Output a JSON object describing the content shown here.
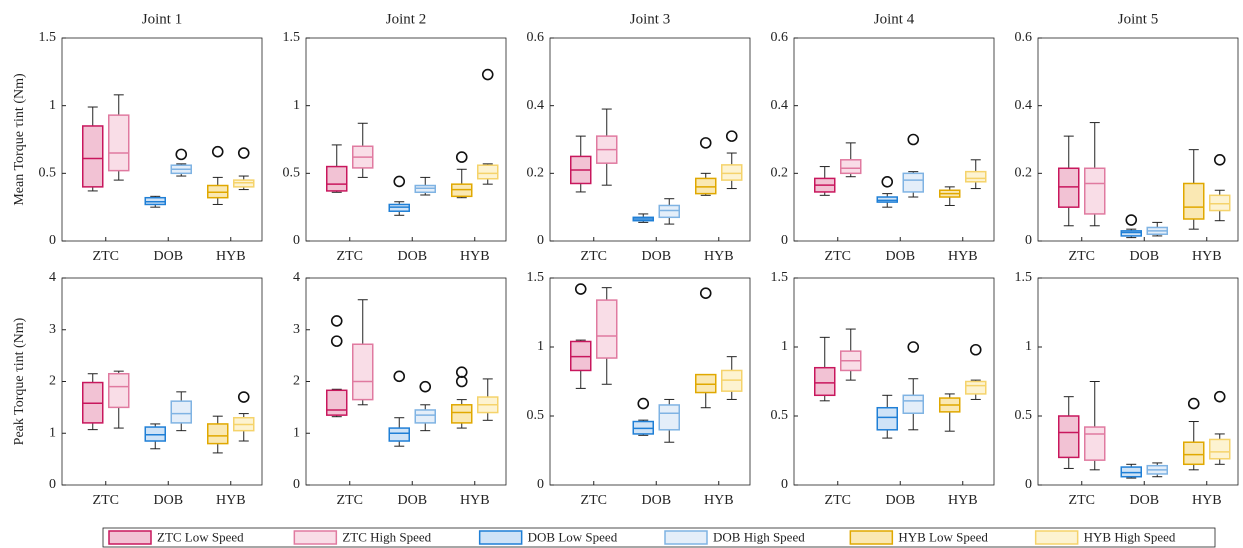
{
  "chart_data": {
    "type": "box",
    "categories": [
      "ZTC",
      "DOB",
      "HYB"
    ],
    "series": [
      {
        "name": "ZTC Low Speed",
        "color": "#c8175d",
        "fill": "#f2c2d4"
      },
      {
        "name": "ZTC High Speed",
        "color": "#e07aa0",
        "fill": "#f9dde7"
      },
      {
        "name": "DOB Low Speed",
        "color": "#1f7fd6",
        "fill": "#cfe3f7"
      },
      {
        "name": "DOB High Speed",
        "color": "#7fb3e3",
        "fill": "#e4eef9"
      },
      {
        "name": "HYB Low Speed",
        "color": "#e0a800",
        "fill": "#fae8b3"
      },
      {
        "name": "HYB High Speed",
        "color": "#f5d36b",
        "fill": "#fdf3d1"
      }
    ],
    "panels": [
      {
        "title": "Joint 1",
        "ylabel": "Mean Torque τint (Nm)",
        "ylim": [
          0,
          1.5
        ],
        "yticks": [
          0,
          0.5,
          1,
          1.5
        ],
        "groups": [
          [
            {
              "low": 0.37,
              "q1": 0.4,
              "median": 0.61,
              "q3": 0.85,
              "high": 0.99
            },
            {
              "low": 0.45,
              "q1": 0.52,
              "median": 0.65,
              "q3": 0.93,
              "high": 1.08
            }
          ],
          [
            {
              "low": 0.25,
              "q1": 0.27,
              "median": 0.29,
              "q3": 0.32,
              "high": 0.33
            },
            {
              "low": 0.48,
              "q1": 0.5,
              "median": 0.53,
              "q3": 0.56,
              "high": 0.57,
              "outliers": [
                0.64
              ]
            }
          ],
          [
            {
              "low": 0.27,
              "q1": 0.32,
              "median": 0.36,
              "q3": 0.41,
              "high": 0.47,
              "outliers": [
                0.66
              ]
            },
            {
              "low": 0.38,
              "q1": 0.4,
              "median": 0.43,
              "q3": 0.45,
              "high": 0.48,
              "outliers": [
                0.65
              ]
            }
          ]
        ]
      },
      {
        "title": "Joint 2",
        "ylim": [
          0,
          1.5
        ],
        "yticks": [
          0,
          0.5,
          1,
          1.5
        ],
        "groups": [
          [
            {
              "low": 0.36,
              "q1": 0.37,
              "median": 0.42,
              "q3": 0.55,
              "high": 0.71
            },
            {
              "low": 0.47,
              "q1": 0.54,
              "median": 0.62,
              "q3": 0.7,
              "high": 0.87
            }
          ],
          [
            {
              "low": 0.19,
              "q1": 0.22,
              "median": 0.25,
              "q3": 0.27,
              "high": 0.29,
              "outliers": [
                0.44
              ]
            },
            {
              "low": 0.34,
              "q1": 0.36,
              "median": 0.39,
              "q3": 0.41,
              "high": 0.47
            }
          ],
          [
            {
              "low": 0.32,
              "q1": 0.33,
              "median": 0.38,
              "q3": 0.42,
              "high": 0.53,
              "outliers": [
                0.62
              ]
            },
            {
              "low": 0.42,
              "q1": 0.46,
              "median": 0.5,
              "q3": 0.56,
              "high": 0.57,
              "outliers": [
                1.23
              ]
            }
          ]
        ]
      },
      {
        "title": "Joint 3",
        "ylim": [
          0,
          0.6
        ],
        "yticks": [
          0,
          0.2,
          0.4,
          0.6
        ],
        "groups": [
          [
            {
              "low": 0.145,
              "q1": 0.17,
              "median": 0.21,
              "q3": 0.25,
              "high": 0.31
            },
            {
              "low": 0.165,
              "q1": 0.23,
              "median": 0.27,
              "q3": 0.31,
              "high": 0.39
            }
          ],
          [
            {
              "low": 0.055,
              "q1": 0.06,
              "median": 0.065,
              "q3": 0.07,
              "high": 0.08
            },
            {
              "low": 0.05,
              "q1": 0.07,
              "median": 0.09,
              "q3": 0.105,
              "high": 0.125
            }
          ],
          [
            {
              "low": 0.135,
              "q1": 0.14,
              "median": 0.16,
              "q3": 0.185,
              "high": 0.2,
              "outliers": [
                0.29
              ]
            },
            {
              "low": 0.155,
              "q1": 0.18,
              "median": 0.2,
              "q3": 0.225,
              "high": 0.26,
              "outliers": [
                0.31
              ]
            }
          ]
        ]
      },
      {
        "title": "Joint 4",
        "ylim": [
          0,
          0.6
        ],
        "yticks": [
          0,
          0.2,
          0.4,
          0.6
        ],
        "groups": [
          [
            {
              "low": 0.135,
              "q1": 0.145,
              "median": 0.165,
              "q3": 0.185,
              "high": 0.22
            },
            {
              "low": 0.19,
              "q1": 0.2,
              "median": 0.215,
              "q3": 0.24,
              "high": 0.29
            }
          ],
          [
            {
              "low": 0.1,
              "q1": 0.115,
              "median": 0.12,
              "q3": 0.13,
              "high": 0.14,
              "outliers": [
                0.175
              ]
            },
            {
              "low": 0.13,
              "q1": 0.145,
              "median": 0.18,
              "q3": 0.2,
              "high": 0.205,
              "outliers": [
                0.3
              ]
            }
          ],
          [
            {
              "low": 0.105,
              "q1": 0.13,
              "median": 0.14,
              "q3": 0.15,
              "high": 0.16
            },
            {
              "low": 0.155,
              "q1": 0.175,
              "median": 0.185,
              "q3": 0.205,
              "high": 0.24
            }
          ]
        ]
      },
      {
        "title": "Joint 5",
        "ylim": [
          0,
          0.6
        ],
        "yticks": [
          0,
          0.2,
          0.4,
          0.6
        ],
        "groups": [
          [
            {
              "low": 0.045,
              "q1": 0.1,
              "median": 0.16,
              "q3": 0.215,
              "high": 0.31
            },
            {
              "low": 0.045,
              "q1": 0.08,
              "median": 0.17,
              "q3": 0.215,
              "high": 0.35
            }
          ],
          [
            {
              "low": 0.01,
              "q1": 0.015,
              "median": 0.025,
              "q3": 0.03,
              "high": 0.035,
              "outliers": [
                0.062
              ]
            },
            {
              "low": 0.015,
              "q1": 0.02,
              "median": 0.03,
              "q3": 0.04,
              "high": 0.055
            }
          ],
          [
            {
              "low": 0.035,
              "q1": 0.065,
              "median": 0.1,
              "q3": 0.17,
              "high": 0.27
            },
            {
              "low": 0.06,
              "q1": 0.09,
              "median": 0.11,
              "q3": 0.135,
              "high": 0.15,
              "outliers": [
                0.24
              ]
            }
          ]
        ]
      },
      {
        "ylabel": "Peak Torque τint (Nm)",
        "ylim": [
          0,
          4
        ],
        "yticks": [
          0,
          1,
          2,
          3,
          4
        ],
        "groups": [
          [
            {
              "low": 1.07,
              "q1": 1.2,
              "median": 1.58,
              "q3": 1.98,
              "high": 2.15
            },
            {
              "low": 1.1,
              "q1": 1.5,
              "median": 1.9,
              "q3": 2.15,
              "high": 2.2
            }
          ],
          [
            {
              "low": 0.7,
              "q1": 0.85,
              "median": 0.97,
              "q3": 1.12,
              "high": 1.18
            },
            {
              "low": 1.05,
              "q1": 1.2,
              "median": 1.38,
              "q3": 1.62,
              "high": 1.8
            }
          ],
          [
            {
              "low": 0.62,
              "q1": 0.8,
              "median": 0.95,
              "q3": 1.18,
              "high": 1.33
            },
            {
              "low": 0.85,
              "q1": 1.05,
              "median": 1.17,
              "q3": 1.3,
              "high": 1.38,
              "outliers": [
                1.7
              ]
            }
          ]
        ]
      },
      {
        "ylim": [
          0,
          4
        ],
        "yticks": [
          0,
          1,
          2,
          3,
          4
        ],
        "groups": [
          [
            {
              "low": 1.32,
              "q1": 1.35,
              "median": 1.45,
              "q3": 1.83,
              "high": 1.85,
              "outliers": [
                2.78,
                3.17
              ]
            },
            {
              "low": 1.55,
              "q1": 1.65,
              "median": 2.0,
              "q3": 2.72,
              "high": 3.58
            }
          ],
          [
            {
              "low": 0.75,
              "q1": 0.85,
              "median": 1.0,
              "q3": 1.1,
              "high": 1.3,
              "outliers": [
                2.1
              ]
            },
            {
              "low": 1.05,
              "q1": 1.2,
              "median": 1.35,
              "q3": 1.45,
              "high": 1.55,
              "outliers": [
                1.9
              ]
            }
          ],
          [
            {
              "low": 1.1,
              "q1": 1.2,
              "median": 1.4,
              "q3": 1.55,
              "high": 1.65,
              "outliers": [
                2.0,
                2.18
              ]
            },
            {
              "low": 1.25,
              "q1": 1.4,
              "median": 1.55,
              "q3": 1.7,
              "high": 2.05
            }
          ]
        ]
      },
      {
        "ylim": [
          0,
          1.5
        ],
        "yticks": [
          0,
          0.5,
          1,
          1.5
        ],
        "groups": [
          [
            {
              "low": 0.7,
              "q1": 0.83,
              "median": 0.93,
              "q3": 1.04,
              "high": 1.05,
              "outliers": [
                1.42
              ]
            },
            {
              "low": 0.73,
              "q1": 0.92,
              "median": 1.08,
              "q3": 1.34,
              "high": 1.43
            }
          ],
          [
            {
              "low": 0.36,
              "q1": 0.37,
              "median": 0.41,
              "q3": 0.46,
              "high": 0.47,
              "outliers": [
                0.59
              ]
            },
            {
              "low": 0.31,
              "q1": 0.4,
              "median": 0.52,
              "q3": 0.58,
              "high": 0.62
            }
          ],
          [
            {
              "low": 0.56,
              "q1": 0.67,
              "median": 0.73,
              "q3": 0.8,
              "high": 0.8,
              "outliers": [
                1.39
              ]
            },
            {
              "low": 0.62,
              "q1": 0.68,
              "median": 0.76,
              "q3": 0.83,
              "high": 0.93
            }
          ]
        ]
      },
      {
        "ylim": [
          0,
          1.5
        ],
        "yticks": [
          0,
          0.5,
          1,
          1.5
        ],
        "groups": [
          [
            {
              "low": 0.61,
              "q1": 0.65,
              "median": 0.74,
              "q3": 0.85,
              "high": 1.07
            },
            {
              "low": 0.76,
              "q1": 0.83,
              "median": 0.9,
              "q3": 0.97,
              "high": 1.13
            }
          ],
          [
            {
              "low": 0.34,
              "q1": 0.4,
              "median": 0.49,
              "q3": 0.56,
              "high": 0.65
            },
            {
              "low": 0.4,
              "q1": 0.52,
              "median": 0.61,
              "q3": 0.65,
              "high": 0.77,
              "outliers": [
                1.0
              ]
            }
          ],
          [
            {
              "low": 0.39,
              "q1": 0.53,
              "median": 0.58,
              "q3": 0.63,
              "high": 0.66
            },
            {
              "low": 0.62,
              "q1": 0.66,
              "median": 0.72,
              "q3": 0.75,
              "high": 0.76,
              "outliers": [
                0.98
              ]
            }
          ]
        ]
      },
      {
        "ylim": [
          0,
          1.5
        ],
        "yticks": [
          0,
          0.5,
          1,
          1.5
        ],
        "groups": [
          [
            {
              "low": 0.12,
              "q1": 0.2,
              "median": 0.38,
              "q3": 0.5,
              "high": 0.64
            },
            {
              "low": 0.11,
              "q1": 0.18,
              "median": 0.37,
              "q3": 0.42,
              "high": 0.75
            }
          ],
          [
            {
              "low": 0.05,
              "q1": 0.06,
              "median": 0.09,
              "q3": 0.13,
              "high": 0.15
            },
            {
              "low": 0.06,
              "q1": 0.08,
              "median": 0.11,
              "q3": 0.14,
              "high": 0.16
            }
          ],
          [
            {
              "low": 0.11,
              "q1": 0.15,
              "median": 0.22,
              "q3": 0.31,
              "high": 0.46,
              "outliers": [
                0.59
              ]
            },
            {
              "low": 0.15,
              "q1": 0.19,
              "median": 0.24,
              "q3": 0.33,
              "high": 0.37,
              "outliers": [
                0.64
              ]
            }
          ]
        ]
      }
    ]
  }
}
